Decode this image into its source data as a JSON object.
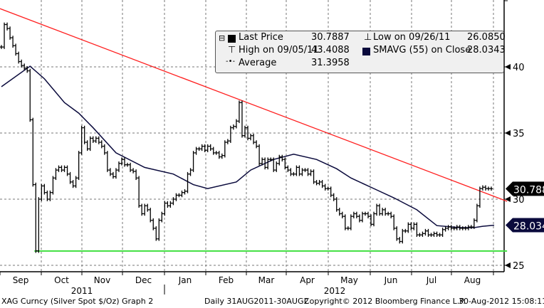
{
  "footer": {
    "left": "XAG Curncy (Silver Spot  $/Oz) Graph 2",
    "middle": "Daily 31AUG2011-30AUG2",
    "copyright": "Copyright© 2012 Bloomberg Finance L.P.",
    "timestamp": "30-Aug-2012 15:08:11"
  },
  "legend": {
    "last_price_label": "Last Price",
    "last_price_value": "30.7887",
    "high_label": "High on 09/05/11",
    "high_value": "43.4088",
    "average_label": "Average",
    "average_value": "31.3958",
    "low_label": "Low on 09/26/11",
    "low_value": "26.0850",
    "sma_label": "SMAVG (55) on Close",
    "sma_value": "28.0343"
  },
  "colors": {
    "price": "#000000",
    "sma": "#0a0a3c",
    "trend": "#ff2020",
    "support": "#40e040",
    "last_box": "#000000",
    "sma_box": "#0a0a3c"
  },
  "chart_data": {
    "type": "line",
    "title": "XAG Curncy (Silver Spot $/Oz)",
    "ylim": [
      25,
      45
    ],
    "yticks": [
      "25",
      "30",
      "35",
      "40"
    ],
    "months": [
      "Sep",
      "Oct",
      "Nov",
      "Dec",
      "Jan",
      "Feb",
      "Mar",
      "Apr",
      "May",
      "Jun",
      "Jul",
      "Aug"
    ],
    "years": [
      "2011",
      "2012"
    ],
    "last_price": "30.7887",
    "sma_last": "28.0343",
    "closes": [
      41.5,
      43.2,
      42.9,
      42.2,
      41.6,
      41.0,
      40.4,
      40.1,
      39.9,
      39.7,
      36.0,
      31.1,
      26.09,
      30.0,
      31.0,
      30.5,
      30.0,
      30.5,
      31.6,
      32.2,
      32.4,
      32.2,
      32.4,
      31.9,
      31.3,
      31.0,
      31.6,
      33.5,
      35.4,
      34.3,
      33.8,
      34.6,
      34.4,
      34.6,
      34.3,
      34.0,
      33.5,
      32.2,
      31.9,
      31.7,
      32.2,
      32.7,
      33.0,
      32.6,
      32.6,
      32.2,
      32.1,
      31.6,
      29.5,
      28.9,
      29.5,
      29.2,
      28.4,
      27.8,
      27.0,
      28.4,
      28.9,
      29.7,
      29.5,
      29.7,
      30.0,
      30.3,
      30.3,
      30.5,
      30.6,
      31.9,
      32.2,
      33.5,
      33.8,
      33.8,
      34.0,
      33.7,
      34.0,
      33.8,
      33.5,
      33.5,
      33.2,
      33.3,
      34.3,
      34.4,
      35.4,
      35.5,
      35.9,
      37.3,
      34.8,
      35.4,
      34.6,
      34.8,
      34.3,
      34.0,
      32.7,
      33.0,
      32.4,
      33.0,
      33.0,
      32.2,
      32.7,
      33.2,
      33.0,
      32.4,
      32.2,
      31.9,
      31.9,
      32.4,
      31.9,
      32.2,
      32.2,
      31.9,
      32.1,
      31.3,
      31.2,
      31.3,
      31.0,
      30.8,
      30.8,
      30.3,
      30.0,
      29.2,
      28.9,
      28.7,
      27.8,
      27.8,
      28.7,
      28.9,
      28.7,
      28.4,
      28.9,
      28.9,
      28.7,
      28.1,
      28.9,
      29.5,
      28.9,
      29.2,
      28.9,
      28.9,
      28.7,
      27.8,
      27.0,
      26.8,
      27.6,
      27.6,
      28.1,
      27.8,
      28.1,
      27.3,
      27.3,
      27.4,
      27.6,
      27.3,
      27.3,
      27.4,
      27.3,
      27.3,
      27.7,
      27.8,
      27.9,
      27.8,
      27.8,
      27.9,
      27.8,
      27.8,
      27.8,
      27.9,
      27.9,
      28.4,
      29.5,
      30.8,
      30.9,
      30.8,
      30.8,
      30.79
    ],
    "sma": [
      [
        0,
        38.5
      ],
      [
        10,
        40.05
      ],
      [
        15,
        39.1
      ],
      [
        22,
        37.3
      ],
      [
        27,
        36.5
      ],
      [
        32,
        35.4
      ],
      [
        40,
        33.5
      ],
      [
        50,
        32.4
      ],
      [
        60,
        31.9
      ],
      [
        67,
        31.1
      ],
      [
        72,
        30.8
      ],
      [
        82,
        31.3
      ],
      [
        87,
        32.2
      ],
      [
        95,
        33
      ],
      [
        102,
        33.4
      ],
      [
        110,
        33
      ],
      [
        117,
        32.3
      ],
      [
        122,
        31.6
      ],
      [
        130,
        30.8
      ],
      [
        137,
        30.1
      ],
      [
        145,
        29.2
      ],
      [
        152,
        28
      ],
      [
        160,
        27.85
      ],
      [
        165,
        27.85
      ],
      [
        168,
        27.95
      ],
      [
        172,
        28.03
      ]
    ],
    "trendline": [
      [
        -0.5,
        44.4
      ],
      [
        176.5,
        29.84
      ]
    ],
    "support": [
      [
        11.5,
        26.085
      ],
      [
        176.5,
        26.085
      ]
    ]
  }
}
